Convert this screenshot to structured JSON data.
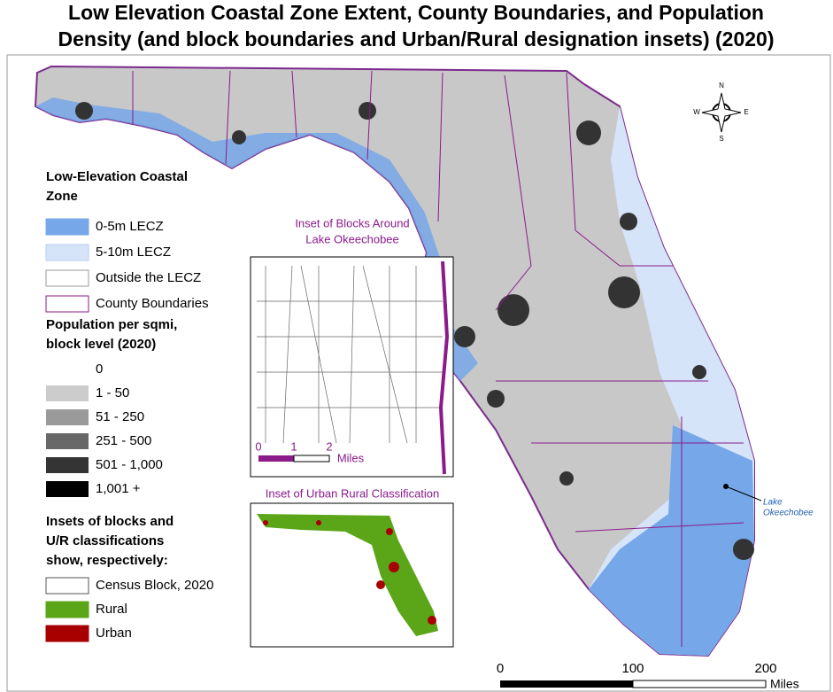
{
  "title_lines": [
    "Low Elevation Coastal Zone Extent, County Boundaries, and Population",
    "Density (and block boundaries and Urban/Rural designation insets) (2020)"
  ],
  "legend": {
    "lecz_heading_lines": [
      "Low-Elevation Coastal",
      "Zone"
    ],
    "lecz_items": [
      {
        "label": "0-5m LECZ",
        "color": "#76a7e8",
        "border": "#76a7e8"
      },
      {
        "label": "5-10m LECZ",
        "color": "#d6e4fa",
        "border": "#b8cdee"
      },
      {
        "label": "Outside the LECZ",
        "color": "#ffffff",
        "border": "#999999"
      },
      {
        "label": "County Boundaries",
        "color": "#ffffff",
        "border": "#8b1a8b"
      }
    ],
    "pop_heading_lines": [
      "Population per sqmi,",
      "block level (2020)"
    ],
    "pop_items": [
      {
        "label": "0",
        "color": "#ffffff"
      },
      {
        "label": "1 - 50",
        "color": "#cccccc"
      },
      {
        "label": "51 - 250",
        "color": "#9a9a9a"
      },
      {
        "label": "251 - 500",
        "color": "#686868"
      },
      {
        "label": "501 - 1,000",
        "color": "#343434"
      },
      {
        "label": "1,001 +",
        "color": "#000000"
      }
    ],
    "insets_heading_lines": [
      "Insets of blocks and",
      "U/R classifications",
      "show, respectively:"
    ],
    "inset_items": [
      {
        "label": "Census Block, 2020",
        "color": "#ffffff",
        "border": "#555555"
      },
      {
        "label": "Rural",
        "color": "#5aa618",
        "border": "#5aa618"
      },
      {
        "label": "Urban",
        "color": "#a80000",
        "border": "#a80000"
      }
    ]
  },
  "inset_blocks": {
    "title_lines": [
      "Inset of Blocks Around",
      "Lake Okeechobee"
    ],
    "scale_ticks": [
      0,
      1,
      2
    ],
    "scale_unit": "Miles"
  },
  "inset_urban": {
    "title": "Inset of Urban Rural Classification"
  },
  "compass": {
    "n": "N",
    "s": "S",
    "e": "E",
    "w": "W"
  },
  "annotation_lines": [
    "Lake",
    "Okeechobee"
  ],
  "scale_bar": {
    "ticks": [
      0,
      100,
      200
    ],
    "unit": "Miles"
  }
}
